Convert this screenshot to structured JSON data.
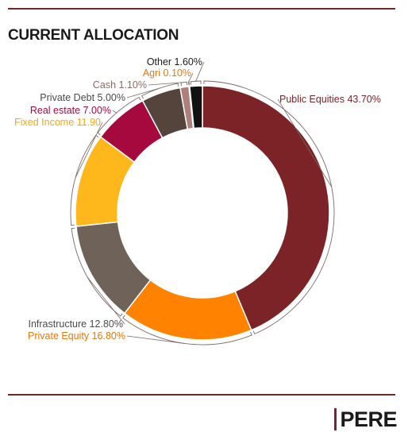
{
  "title": "CURRENT ALLOCATION",
  "logo": {
    "text": "PERE"
  },
  "colors": {
    "rule": "#6b2a2a",
    "logo_bar": "#7d2327"
  },
  "chart_data": {
    "type": "pie",
    "style": "donut",
    "title": "CURRENT ALLOCATION",
    "slices": [
      {
        "name": "Public Equities",
        "value": 43.7,
        "label": "Public Equities 43.70%",
        "color": "#7b2327",
        "label_color": "#7b2327"
      },
      {
        "name": "Private Equity",
        "value": 16.8,
        "label": "Private Equity 16.80%",
        "color": "#ff8200",
        "label_color": "#e07a12"
      },
      {
        "name": "Infrastructure",
        "value": 12.8,
        "label": "Infrastructure 12.80%",
        "color": "#6e6259",
        "label_color": "#4a4a4a"
      },
      {
        "name": "Fixed Income",
        "value": 11.9,
        "label": "Fixed Income 11.90",
        "color": "#ffb81c",
        "label_color": "#f0a81a"
      },
      {
        "name": "Real estate",
        "value": 7.0,
        "label": "Real estate 7.00%",
        "color": "#a6093d",
        "label_color": "#a6093d"
      },
      {
        "name": "Private Debt",
        "value": 5.0,
        "label": "Private Debt 5.00%",
        "color": "#54443c",
        "label_color": "#4a4a4a"
      },
      {
        "name": "Cash",
        "value": 1.1,
        "label": "Cash 1.10%",
        "color": "#b07f7a",
        "label_color": "#8a6a66"
      },
      {
        "name": "Agri",
        "value": 0.1,
        "label": "Agri 0.10%",
        "color": "#e07a12",
        "label_color": "#e07a12"
      },
      {
        "name": "Other",
        "value": 1.6,
        "label": "Other 1.60%",
        "color": "#111111",
        "label_color": "#1a1a1a"
      }
    ]
  }
}
